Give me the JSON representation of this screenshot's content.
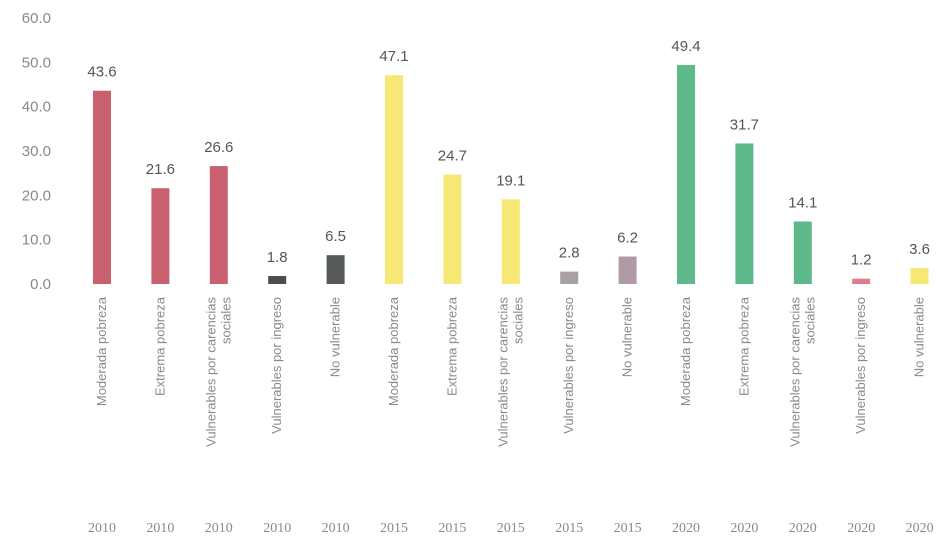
{
  "chart_data": {
    "type": "bar",
    "title": "",
    "xlabel": "",
    "ylabel": "",
    "ylim": [
      0,
      60
    ],
    "yticks": [
      "0.0",
      "10.0",
      "20.0",
      "30.0",
      "40.0",
      "50.0",
      "60.0"
    ],
    "grid": false,
    "legend": "none",
    "bars": [
      {
        "category": [
          "Moderada pobreza"
        ],
        "year": "2010",
        "value": 43.6,
        "label": "43.6",
        "color": "#c96070"
      },
      {
        "category": [
          "Extrema pobreza"
        ],
        "year": "2010",
        "value": 21.6,
        "label": "21.6",
        "color": "#c96070"
      },
      {
        "category": [
          "Vulnerables por carencias",
          "sociales"
        ],
        "year": "2010",
        "value": 26.6,
        "label": "26.6",
        "color": "#c96070"
      },
      {
        "category": [
          "Vulnerables por ingreso"
        ],
        "year": "2010",
        "value": 1.8,
        "label": "1.8",
        "color": "#4d4d4d"
      },
      {
        "category": [
          "No vulnerable"
        ],
        "year": "2010",
        "value": 6.5,
        "label": "6.5",
        "color": "#555a58"
      },
      {
        "category": [
          "Moderada pobreza"
        ],
        "year": "2015",
        "value": 47.1,
        "label": "47.1",
        "color": "#f7e876"
      },
      {
        "category": [
          "Extrema pobreza"
        ],
        "year": "2015",
        "value": 24.7,
        "label": "24.7",
        "color": "#f7e876"
      },
      {
        "category": [
          "Vulnerables por carencias",
          "sociales"
        ],
        "year": "2015",
        "value": 19.1,
        "label": "19.1",
        "color": "#f7e876"
      },
      {
        "category": [
          "Vulnerables por ingreso"
        ],
        "year": "2015",
        "value": 2.8,
        "label": "2.8",
        "color": "#a8a0a2"
      },
      {
        "category": [
          "No vulnerable"
        ],
        "year": "2015",
        "value": 6.2,
        "label": "6.2",
        "color": "#b09aa6"
      },
      {
        "category": [
          "Moderada pobreza"
        ],
        "year": "2020",
        "value": 49.4,
        "label": "49.4",
        "color": "#5db88a"
      },
      {
        "category": [
          "Extrema pobreza"
        ],
        "year": "2020",
        "value": 31.7,
        "label": "31.7",
        "color": "#5db88a"
      },
      {
        "category": [
          "Vulnerables por carencias",
          "sociales"
        ],
        "year": "2020",
        "value": 14.1,
        "label": "14.1",
        "color": "#5db88a"
      },
      {
        "category": [
          "Vulnerables por ingreso"
        ],
        "year": "2020",
        "value": 1.2,
        "label": "1.2",
        "color": "#e07a8c"
      },
      {
        "category": [
          "No vulnerable"
        ],
        "year": "2020",
        "value": 3.6,
        "label": "3.6",
        "color": "#f7e876"
      }
    ]
  }
}
